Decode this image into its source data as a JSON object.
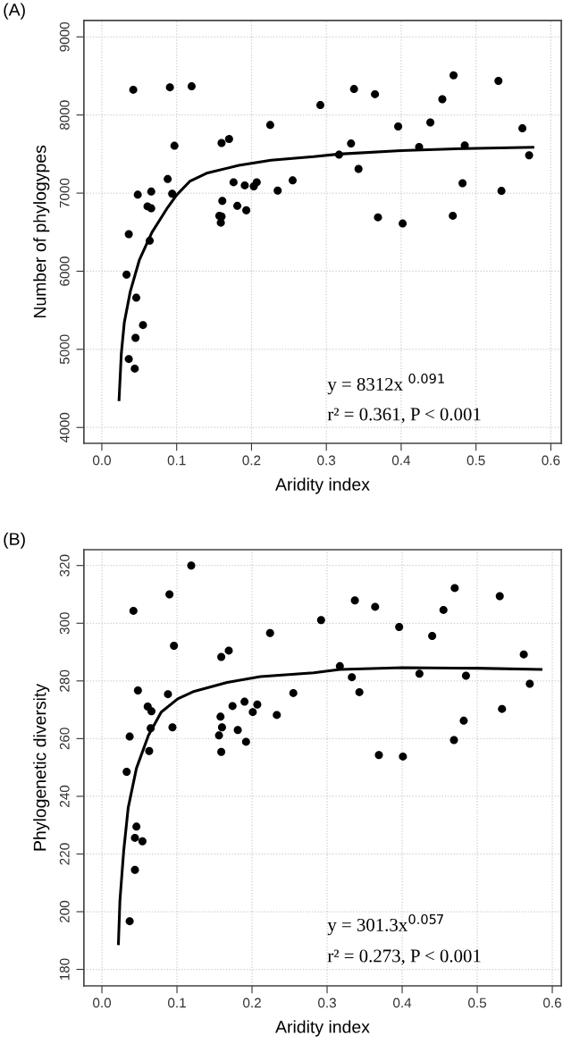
{
  "chart_data": [
    {
      "type": "scatter",
      "title": "(A)",
      "xlabel": "Aridity index",
      "ylabel": "Number of phylogypes",
      "xlim": [
        -0.024,
        0.614
      ],
      "ylim": [
        3797,
        9211
      ],
      "xticks": [
        {
          "value": 0,
          "label": "0.0"
        },
        0.1,
        0.2,
        0.3,
        0.4,
        0.5,
        0.6
      ],
      "yticks": [
        4000,
        5000,
        6000,
        7000,
        8000,
        9000
      ],
      "grid": true,
      "legend": false,
      "annotations": [
        "y = 8312x $^{0.091}$",
        "r² = 0.361, P < 0.001"
      ],
      "series": [
        {
          "marker": "circle",
          "color": "#000000",
          "x": [
            0.042,
            0.091,
            0.12,
            0.225,
            0.17,
            0.16,
            0.097,
            0.088,
            0.048,
            0.066,
            0.094,
            0.061,
            0.066,
            0.036,
            0.064,
            0.033,
            0.046,
            0.055,
            0.045,
            0.036,
            0.044,
            0.176,
            0.191,
            0.203,
            0.207,
            0.255,
            0.235,
            0.161,
            0.181,
            0.193,
            0.157,
            0.16,
            0.159,
            0.292,
            0.337,
            0.365,
            0.47,
            0.53,
            0.455,
            0.439,
            0.396,
            0.562,
            0.333,
            0.317,
            0.424,
            0.485,
            0.571,
            0.343,
            0.482,
            0.534,
            0.369,
            0.402,
            0.469
          ],
          "values": [
            8323,
            8355,
            8367,
            7872,
            7693,
            7641,
            7606,
            7180,
            6980,
            7020,
            6992,
            6830,
            6805,
            6474,
            6390,
            5956,
            5661,
            5311,
            5147,
            4876,
            4753,
            7139,
            7099,
            7087,
            7139,
            7163,
            7032,
            6900,
            6837,
            6781,
            6709,
            6700,
            6621,
            8127,
            8333,
            8266,
            8508,
            8437,
            8202,
            7905,
            7853,
            7829,
            7635,
            7492,
            7591,
            7611,
            7484,
            7310,
            7127,
            7028,
            6690,
            6611,
            6710
          ]
        },
        {
          "type": "line",
          "color": "#000000",
          "x": [
            0.023,
            0.026,
            0.03,
            0.038,
            0.05,
            0.067,
            0.088,
            0.1,
            0.118,
            0.14,
            0.183,
            0.226,
            0.283,
            0.317,
            0.4,
            0.484,
            0.576
          ],
          "values": [
            4355,
            4944,
            5343,
            5741,
            6140,
            6498,
            6817,
            6976,
            7155,
            7255,
            7355,
            7422,
            7466,
            7500,
            7544,
            7571,
            7587
          ]
        }
      ]
    },
    {
      "type": "scatter",
      "title": "(B)",
      "xlabel": "Aridity index",
      "ylabel": "Phylogenetic diversity",
      "xlim": [
        -0.024,
        0.612
      ],
      "ylim": [
        174.3,
        325.5
      ],
      "xticks": [
        {
          "value": 0,
          "label": "0.0"
        },
        0.1,
        0.2,
        0.3,
        0.4,
        0.5,
        0.6
      ],
      "yticks": [
        180,
        200,
        220,
        240,
        260,
        280,
        300,
        320
      ],
      "grid": true,
      "legend": false,
      "annotations": [
        "y = 301.3x$^{0.057}$",
        "r² = 0.273, P < 0.001"
      ],
      "series": [
        {
          "marker": "circle",
          "color": "#000000",
          "x": [
            0.119,
            0.09,
            0.042,
            0.224,
            0.096,
            0.169,
            0.159,
            0.048,
            0.088,
            0.255,
            0.19,
            0.061,
            0.066,
            0.174,
            0.207,
            0.201,
            0.233,
            0.158,
            0.16,
            0.065,
            0.094,
            0.181,
            0.037,
            0.156,
            0.192,
            0.063,
            0.159,
            0.033,
            0.046,
            0.044,
            0.054,
            0.044,
            0.037,
            0.292,
            0.337,
            0.364,
            0.47,
            0.53,
            0.455,
            0.396,
            0.44,
            0.562,
            0.317,
            0.333,
            0.343,
            0.423,
            0.485,
            0.57,
            0.533,
            0.482,
            0.469,
            0.369,
            0.401
          ],
          "values": [
            320.0,
            310.0,
            304.3,
            296.6,
            292.2,
            290.5,
            288.3,
            276.7,
            275.4,
            275.8,
            272.8,
            271.1,
            269.5,
            271.3,
            271.8,
            269.2,
            268.2,
            267.6,
            263.9,
            263.6,
            263.9,
            263.0,
            260.7,
            261.1,
            258.9,
            255.7,
            255.4,
            248.5,
            229.5,
            225.6,
            224.4,
            214.5,
            196.7,
            301.1,
            307.9,
            305.7,
            312.2,
            309.4,
            304.6,
            298.7,
            295.6,
            289.2,
            285.1,
            281.3,
            276.1,
            282.5,
            281.8,
            279.0,
            270.3,
            266.2,
            259.5,
            254.3,
            253.8
          ]
        },
        {
          "type": "line",
          "color": "#000000",
          "x": [
            0.022,
            0.024,
            0.029,
            0.035,
            0.046,
            0.062,
            0.079,
            0.101,
            0.123,
            0.167,
            0.211,
            0.282,
            0.317,
            0.4,
            0.5,
            0.585
          ],
          "values": [
            188.9,
            203.8,
            221.0,
            236.0,
            249.7,
            261.1,
            269.2,
            273.8,
            276.4,
            279.5,
            281.5,
            282.8,
            284.0,
            284.6,
            284.4,
            284.0
          ]
        }
      ]
    }
  ]
}
